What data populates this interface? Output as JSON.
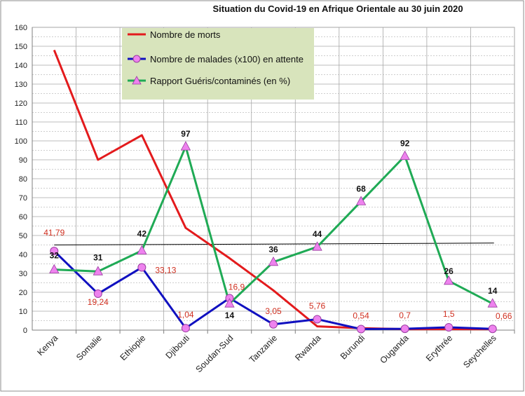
{
  "chart_data": {
    "type": "line",
    "title": "Situation du Covid-19 en Afrique Orientale au 30 juin 2020",
    "xlabel": "",
    "ylabel": "",
    "ylim": [
      0,
      160
    ],
    "yticks": [
      "0",
      "10",
      "20",
      "30",
      "40",
      "50",
      "60",
      "70",
      "80",
      "90",
      "100",
      "110",
      "120",
      "130",
      "140",
      "150",
      "160"
    ],
    "categories": [
      "Kenya",
      "Somalie",
      "Ethiopie",
      "Djibouti",
      "Soudan-Sud",
      "Tanzanie",
      "Rwanda",
      "Burundi",
      "Ouganda",
      "Erythrée",
      "Seychelles"
    ],
    "grid": true,
    "legend_position": "top-center",
    "series": [
      {
        "name": "Nombre de morts",
        "color": "#e31a1c",
        "marker": "none",
        "values": [
          148,
          90,
          103,
          54,
          38,
          21,
          2,
          1,
          0.5,
          0.5,
          0.5
        ],
        "labels": [
          "",
          "",
          "",
          "",
          "",
          "",
          "",
          "",
          "",
          "",
          ""
        ]
      },
      {
        "name": "Nombre de malades (x100) en attente",
        "color": "#1010c0",
        "marker": "circle",
        "marker_color": "#ee82ee",
        "label_color": "#d03020",
        "values": [
          41.79,
          19.24,
          33.13,
          1.04,
          16.9,
          3.05,
          5.76,
          0.54,
          0.7,
          1.5,
          0.66
        ],
        "labels": [
          "41,79",
          "19,24",
          "33,13",
          "1,04",
          "16,9",
          "3,05",
          "5,76",
          "0,54",
          "0,7",
          "1,5",
          "0,66"
        ]
      },
      {
        "name": "Rapport Guéris/contaminés (en %)",
        "color": "#1faa55",
        "marker": "triangle",
        "marker_color": "#ee82ee",
        "label_color": "#111111",
        "values": [
          32,
          31,
          42,
          97,
          14,
          36,
          44,
          68,
          92,
          26,
          14
        ],
        "labels": [
          "32",
          "31",
          "42",
          "97",
          "14",
          "36",
          "44",
          "68",
          "92",
          "26",
          "14"
        ]
      }
    ],
    "trendline": {
      "color": "#000000",
      "from": 45,
      "to": 46
    }
  }
}
